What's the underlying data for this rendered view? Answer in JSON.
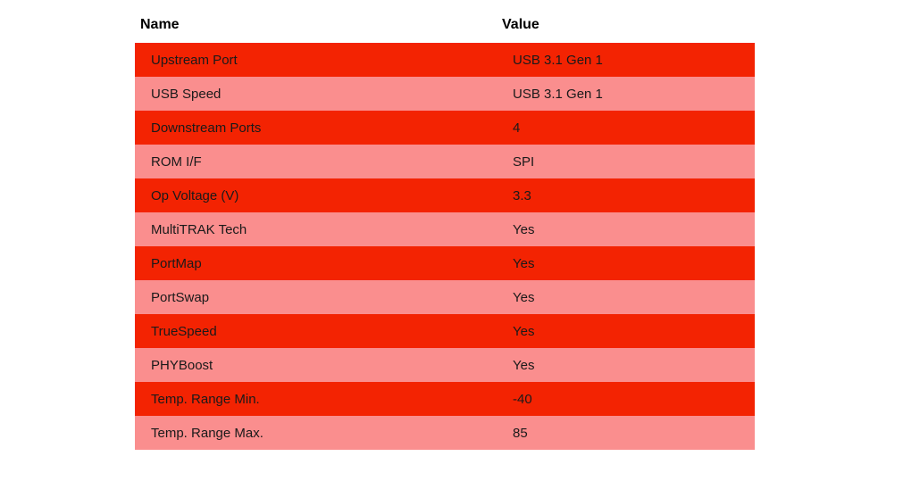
{
  "colors": {
    "row_red": "#f32302",
    "row_pink": "#fa8e8e",
    "header_text": "#000000",
    "row_text": "#1a1a1a"
  },
  "table": {
    "columns": [
      {
        "label": "Name"
      },
      {
        "label": "Value"
      }
    ],
    "rows": [
      {
        "name": "Upstream Port",
        "value": "USB 3.1 Gen 1"
      },
      {
        "name": "USB Speed",
        "value": "USB 3.1 Gen 1"
      },
      {
        "name": "Downstream Ports",
        "value": "4"
      },
      {
        "name": "ROM I/F",
        "value": "SPI"
      },
      {
        "name": "Op Voltage (V)",
        "value": "3.3"
      },
      {
        "name": "MultiTRAK Tech",
        "value": "Yes"
      },
      {
        "name": "PortMap",
        "value": "Yes"
      },
      {
        "name": "PortSwap",
        "value": "Yes"
      },
      {
        "name": "TrueSpeed",
        "value": "Yes"
      },
      {
        "name": "PHYBoost",
        "value": "Yes"
      },
      {
        "name": "Temp. Range Min.",
        "value": "-40"
      },
      {
        "name": "Temp. Range Max.",
        "value": "85"
      }
    ]
  },
  "chart_data": {
    "type": "table",
    "title": "",
    "columns": [
      "Name",
      "Value"
    ],
    "rows": [
      [
        "Upstream Port",
        "USB 3.1 Gen 1"
      ],
      [
        "USB Speed",
        "USB 3.1 Gen 1"
      ],
      [
        "Downstream Ports",
        "4"
      ],
      [
        "ROM I/F",
        "SPI"
      ],
      [
        "Op Voltage (V)",
        "3.3"
      ],
      [
        "MultiTRAK Tech",
        "Yes"
      ],
      [
        "PortMap",
        "Yes"
      ],
      [
        "PortSwap",
        "Yes"
      ],
      [
        "TrueSpeed",
        "Yes"
      ],
      [
        "PHYBoost",
        "Yes"
      ],
      [
        "Temp. Range Min.",
        "-40"
      ],
      [
        "Temp. Range Max.",
        "85"
      ]
    ],
    "layout_hints": {
      "striped": true,
      "stripe_colors": [
        "#f32302",
        "#fa8e8e"
      ],
      "header_background": "#ffffff",
      "grid": false
    }
  }
}
